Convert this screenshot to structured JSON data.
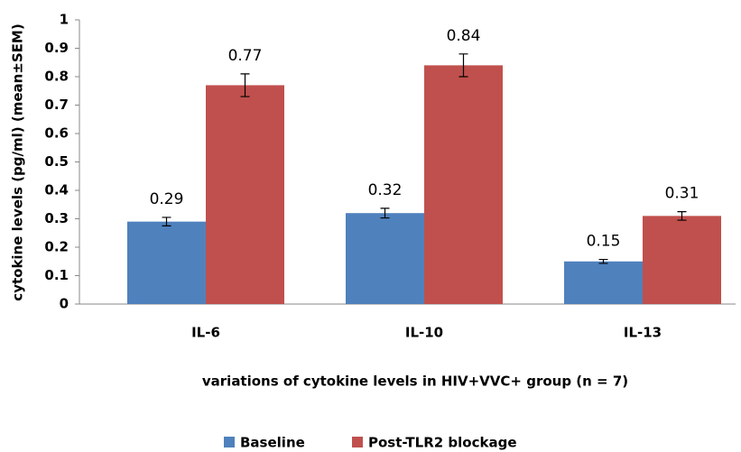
{
  "chart_data": {
    "type": "bar",
    "y_label": "cytokine levels (pg/ml) (mean±SEM)",
    "x_label": "variations of cytokine levels in HIV+VVC+ group (n = 7)",
    "categories": [
      "IL-6",
      "IL-10",
      "IL-13"
    ],
    "series": [
      {
        "name": "Baseline",
        "color": "#4f81bd",
        "values": [
          0.29,
          0.32,
          0.15
        ],
        "errors": [
          0.015,
          0.017,
          0.007
        ]
      },
      {
        "name": "Post-TLR2 blockage",
        "color": "#c0504d",
        "values": [
          0.77,
          0.84,
          0.31
        ],
        "errors": [
          0.04,
          0.04,
          0.015
        ]
      }
    ],
    "ylim": [
      0,
      1
    ],
    "yticks": [
      0,
      0.1,
      0.2,
      0.3,
      0.4,
      0.5,
      0.6,
      0.7,
      0.8,
      0.9,
      1
    ],
    "grid": false,
    "legend": "bottom"
  }
}
